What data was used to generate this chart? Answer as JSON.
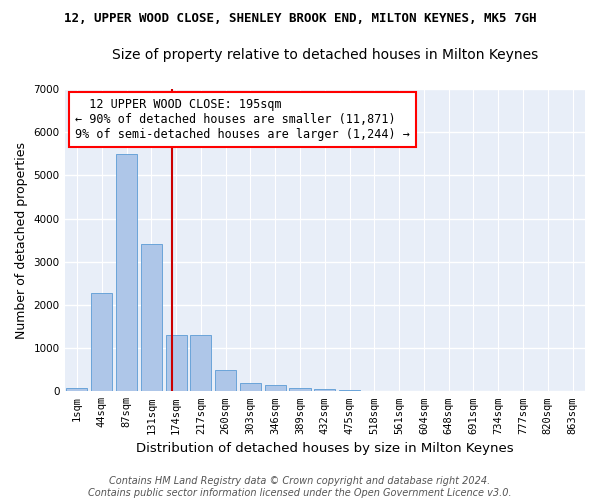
{
  "title1": "12, UPPER WOOD CLOSE, SHENLEY BROOK END, MILTON KEYNES, MK5 7GH",
  "title2": "Size of property relative to detached houses in Milton Keynes",
  "xlabel": "Distribution of detached houses by size in Milton Keynes",
  "ylabel": "Number of detached properties",
  "categories": [
    "1sqm",
    "44sqm",
    "87sqm",
    "131sqm",
    "174sqm",
    "217sqm",
    "260sqm",
    "303sqm",
    "346sqm",
    "389sqm",
    "432sqm",
    "475sqm",
    "518sqm",
    "561sqm",
    "604sqm",
    "648sqm",
    "691sqm",
    "734sqm",
    "777sqm",
    "820sqm",
    "863sqm"
  ],
  "values": [
    75,
    2280,
    5500,
    3400,
    1300,
    1300,
    500,
    200,
    150,
    80,
    50,
    40,
    0,
    0,
    0,
    0,
    0,
    0,
    0,
    0,
    0
  ],
  "bar_color": "#aec6e8",
  "bar_edgecolor": "#5b9bd5",
  "vline_x": 3.85,
  "vline_color": "#cc0000",
  "annotation_text": "  12 UPPER WOOD CLOSE: 195sqm  \n← 90% of detached houses are smaller (11,871)\n9% of semi-detached houses are larger (1,244) →",
  "annotation_box_color": "white",
  "annotation_box_edgecolor": "red",
  "ylim": [
    0,
    7000
  ],
  "yticks": [
    0,
    1000,
    2000,
    3000,
    4000,
    5000,
    6000,
    7000
  ],
  "background_color": "#e8eef8",
  "grid_color": "white",
  "footer_text": "Contains HM Land Registry data © Crown copyright and database right 2024.\nContains public sector information licensed under the Open Government Licence v3.0.",
  "title1_fontsize": 9.0,
  "title2_fontsize": 10.0,
  "xlabel_fontsize": 9.5,
  "ylabel_fontsize": 9.0,
  "tick_fontsize": 7.5,
  "annot_fontsize": 8.5,
  "footer_fontsize": 7.0
}
